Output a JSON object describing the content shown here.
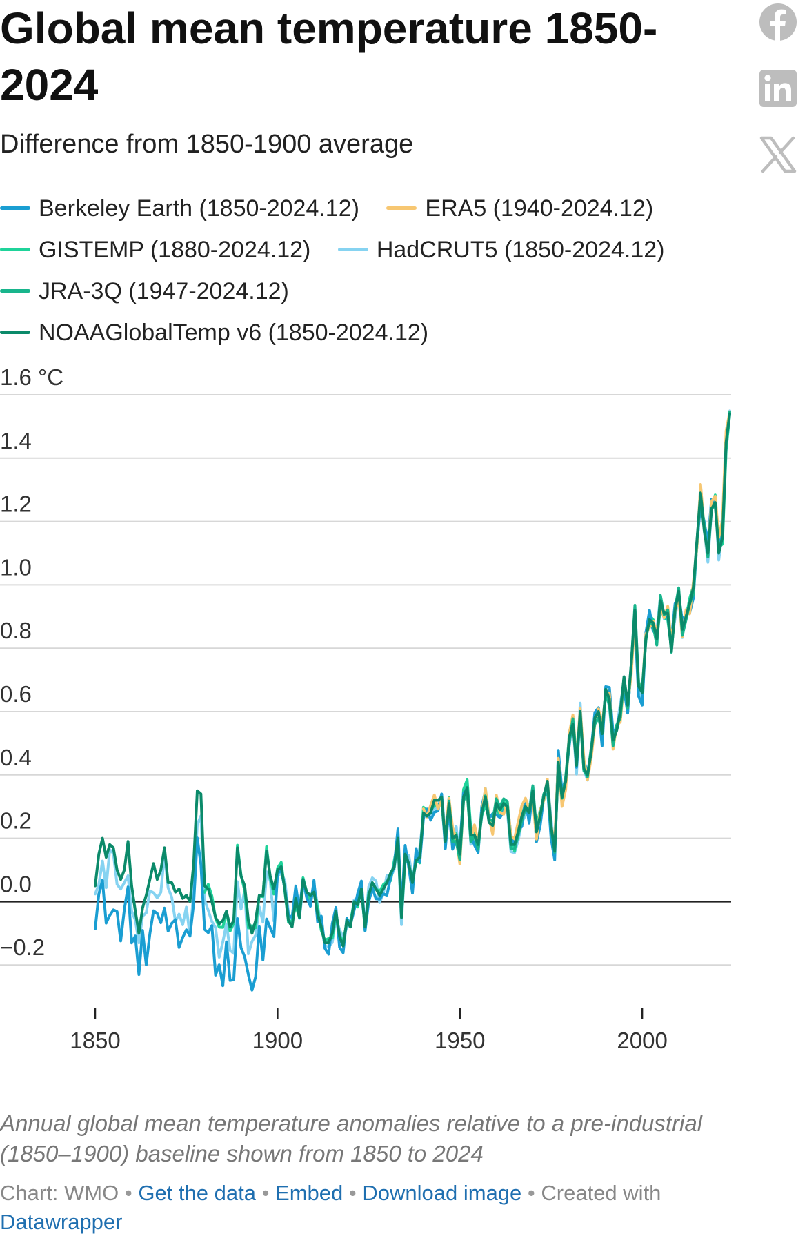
{
  "header": {
    "title": "Global mean temperature 1850-2024",
    "subtitle": "Difference from 1850-1900 average"
  },
  "share": [
    {
      "icon": "facebook-icon"
    },
    {
      "icon": "linkedin-icon"
    },
    {
      "icon": "x-icon"
    }
  ],
  "legend": [
    {
      "label": "Berkeley Earth (1850-2024.12)",
      "color": "#1a9ed2"
    },
    {
      "label": "ERA5 (1940-2024.12)",
      "color": "#f7c772"
    },
    {
      "label": "GISTEMP (1880-2024.12)",
      "color": "#1fd39a"
    },
    {
      "label": "HadCRUT5 (1850-2024.12)",
      "color": "#86d3f1"
    },
    {
      "label": "JRA-3Q (1947-2024.12)",
      "color": "#18b58c"
    },
    {
      "label": "NOAAGlobalTemp v6 (1850-2024.12)",
      "color": "#0b8a6a"
    }
  ],
  "chart_data": {
    "type": "line",
    "y_unit_label": "°C",
    "ylim": [
      -0.4,
      1.6
    ],
    "yticks": [
      -0.2,
      0.0,
      0.2,
      0.4,
      0.6,
      0.8,
      1.0,
      1.2,
      1.4,
      1.6
    ],
    "ytick_labels": [
      "−0.2",
      "0.0",
      "0.2",
      "0.4",
      "0.6",
      "0.8",
      "1.0",
      "1.2",
      "1.4",
      "1.6"
    ],
    "xlim": [
      1850,
      2024
    ],
    "xticks": [
      1850,
      1900,
      1950,
      2000
    ],
    "grid": true,
    "zero_line": true,
    "noaa": {
      "start": 1850,
      "values": [
        0.05,
        0.15,
        0.2,
        0.14,
        0.18,
        0.17,
        0.1,
        0.07,
        0.1,
        0.19,
        0.05,
        -0.03,
        -0.1,
        -0.02,
        0.02,
        0.07,
        0.12,
        0.07,
        0.1,
        0.17,
        0.06,
        0.06,
        0.03,
        0.04,
        0.01,
        0.02,
        0.0,
        0.12,
        0.35,
        0.34,
        0.05,
        0.04,
        0.0,
        -0.05,
        -0.07,
        -0.06,
        -0.03,
        -0.08,
        -0.06,
        0.17,
        0.08,
        0.05,
        -0.06,
        -0.1,
        -0.06,
        0.02,
        0.02,
        0.16,
        0.08,
        0.04,
        0.1,
        0.11,
        0.04,
        -0.06,
        -0.08,
        0.01,
        -0.05,
        0.07,
        0.03,
        0.02,
        0.03,
        -0.04,
        -0.08,
        -0.13,
        -0.13,
        -0.1,
        -0.03,
        -0.11,
        -0.14,
        -0.06,
        -0.08,
        0.0,
        -0.01,
        0.04,
        -0.08,
        0.02,
        0.06,
        0.04,
        0.02,
        0.04,
        0.06,
        0.09,
        0.11,
        0.2,
        -0.05,
        0.15,
        0.12,
        0.06,
        0.13,
        0.14,
        0.28,
        0.27,
        0.28,
        0.32,
        0.32,
        0.33,
        0.19,
        0.31,
        0.2,
        0.21,
        0.15,
        0.33,
        0.36,
        0.21,
        0.21,
        0.18,
        0.28,
        0.33,
        0.25,
        0.24,
        0.31,
        0.29,
        0.31,
        0.3,
        0.18,
        0.18,
        0.22,
        0.27,
        0.3,
        0.28,
        0.35,
        0.22,
        0.27,
        0.33,
        0.38,
        0.24,
        0.29,
        0.34,
        0.28,
        0.55,
        0.53,
        0.6,
        0.59,
        0.48,
        0.58,
        0.6,
        0.5,
        0.52,
        0.66,
        0.58,
        0.75,
        0.64,
        0.67,
        0.59,
        0.62,
        0.75,
        0.55,
        0.63,
        0.69,
        0.88,
        0.62,
        0.82,
        0.85,
        0.88,
        0.79,
        0.77,
        0.88,
        0.95,
        0.85,
        0.85,
        0.88,
        0.91,
        1.02,
        1.04,
        0.97,
        1.01,
        1.05,
        1.1,
        1.22,
        1.31,
        1.18,
        1.13,
        1.22,
        1.25,
        1.16,
        1.16,
        1.52,
        1.55
      ],
      "late_override": {
        "1975": 0.24,
        "1976": 0.16,
        "1977": 0.44,
        "1978": 0.33,
        "1979": 0.38,
        "1980": 0.52,
        "1981": 0.56,
        "1982": 0.43,
        "1983": 0.6,
        "1984": 0.42,
        "1985": 0.4,
        "1986": 0.47,
        "1987": 0.58,
        "1988": 0.6,
        "1989": 0.53,
        "1990": 0.67,
        "1991": 0.64,
        "1992": 0.51,
        "1993": 0.54,
        "1994": 0.6,
        "1995": 0.71,
        "1996": 0.62,
        "1997": 0.75,
        "1998": 0.92,
        "1999": 0.68,
        "2000": 0.66,
        "2001": 0.83,
        "2002": 0.89,
        "2003": 0.88,
        "2004": 0.83,
        "2005": 0.95,
        "2006": 0.91,
        "2007": 0.91,
        "2008": 0.79,
        "2009": 0.92,
        "2010": 0.98,
        "2011": 0.86,
        "2012": 0.9,
        "2013": 0.94,
        "2014": 0.99,
        "2015": 1.14,
        "2016": 1.29,
        "2017": 1.17,
        "2018": 1.1,
        "2019": 1.24,
        "2020": 1.26,
        "2021": 1.1,
        "2022": 1.15,
        "2023": 1.45,
        "2024": 1.54
      }
    }
  },
  "footer": {
    "notes": "Annual global mean temperature anomalies relative to a pre-industrial (1850–1900) baseline shown from 1850 to 2024",
    "source_prefix": "Chart: WMO",
    "link_data": "Get the data",
    "link_embed": "Embed",
    "link_download": "Download image",
    "created_with": "Created with",
    "link_datawrapper": "Datawrapper"
  }
}
